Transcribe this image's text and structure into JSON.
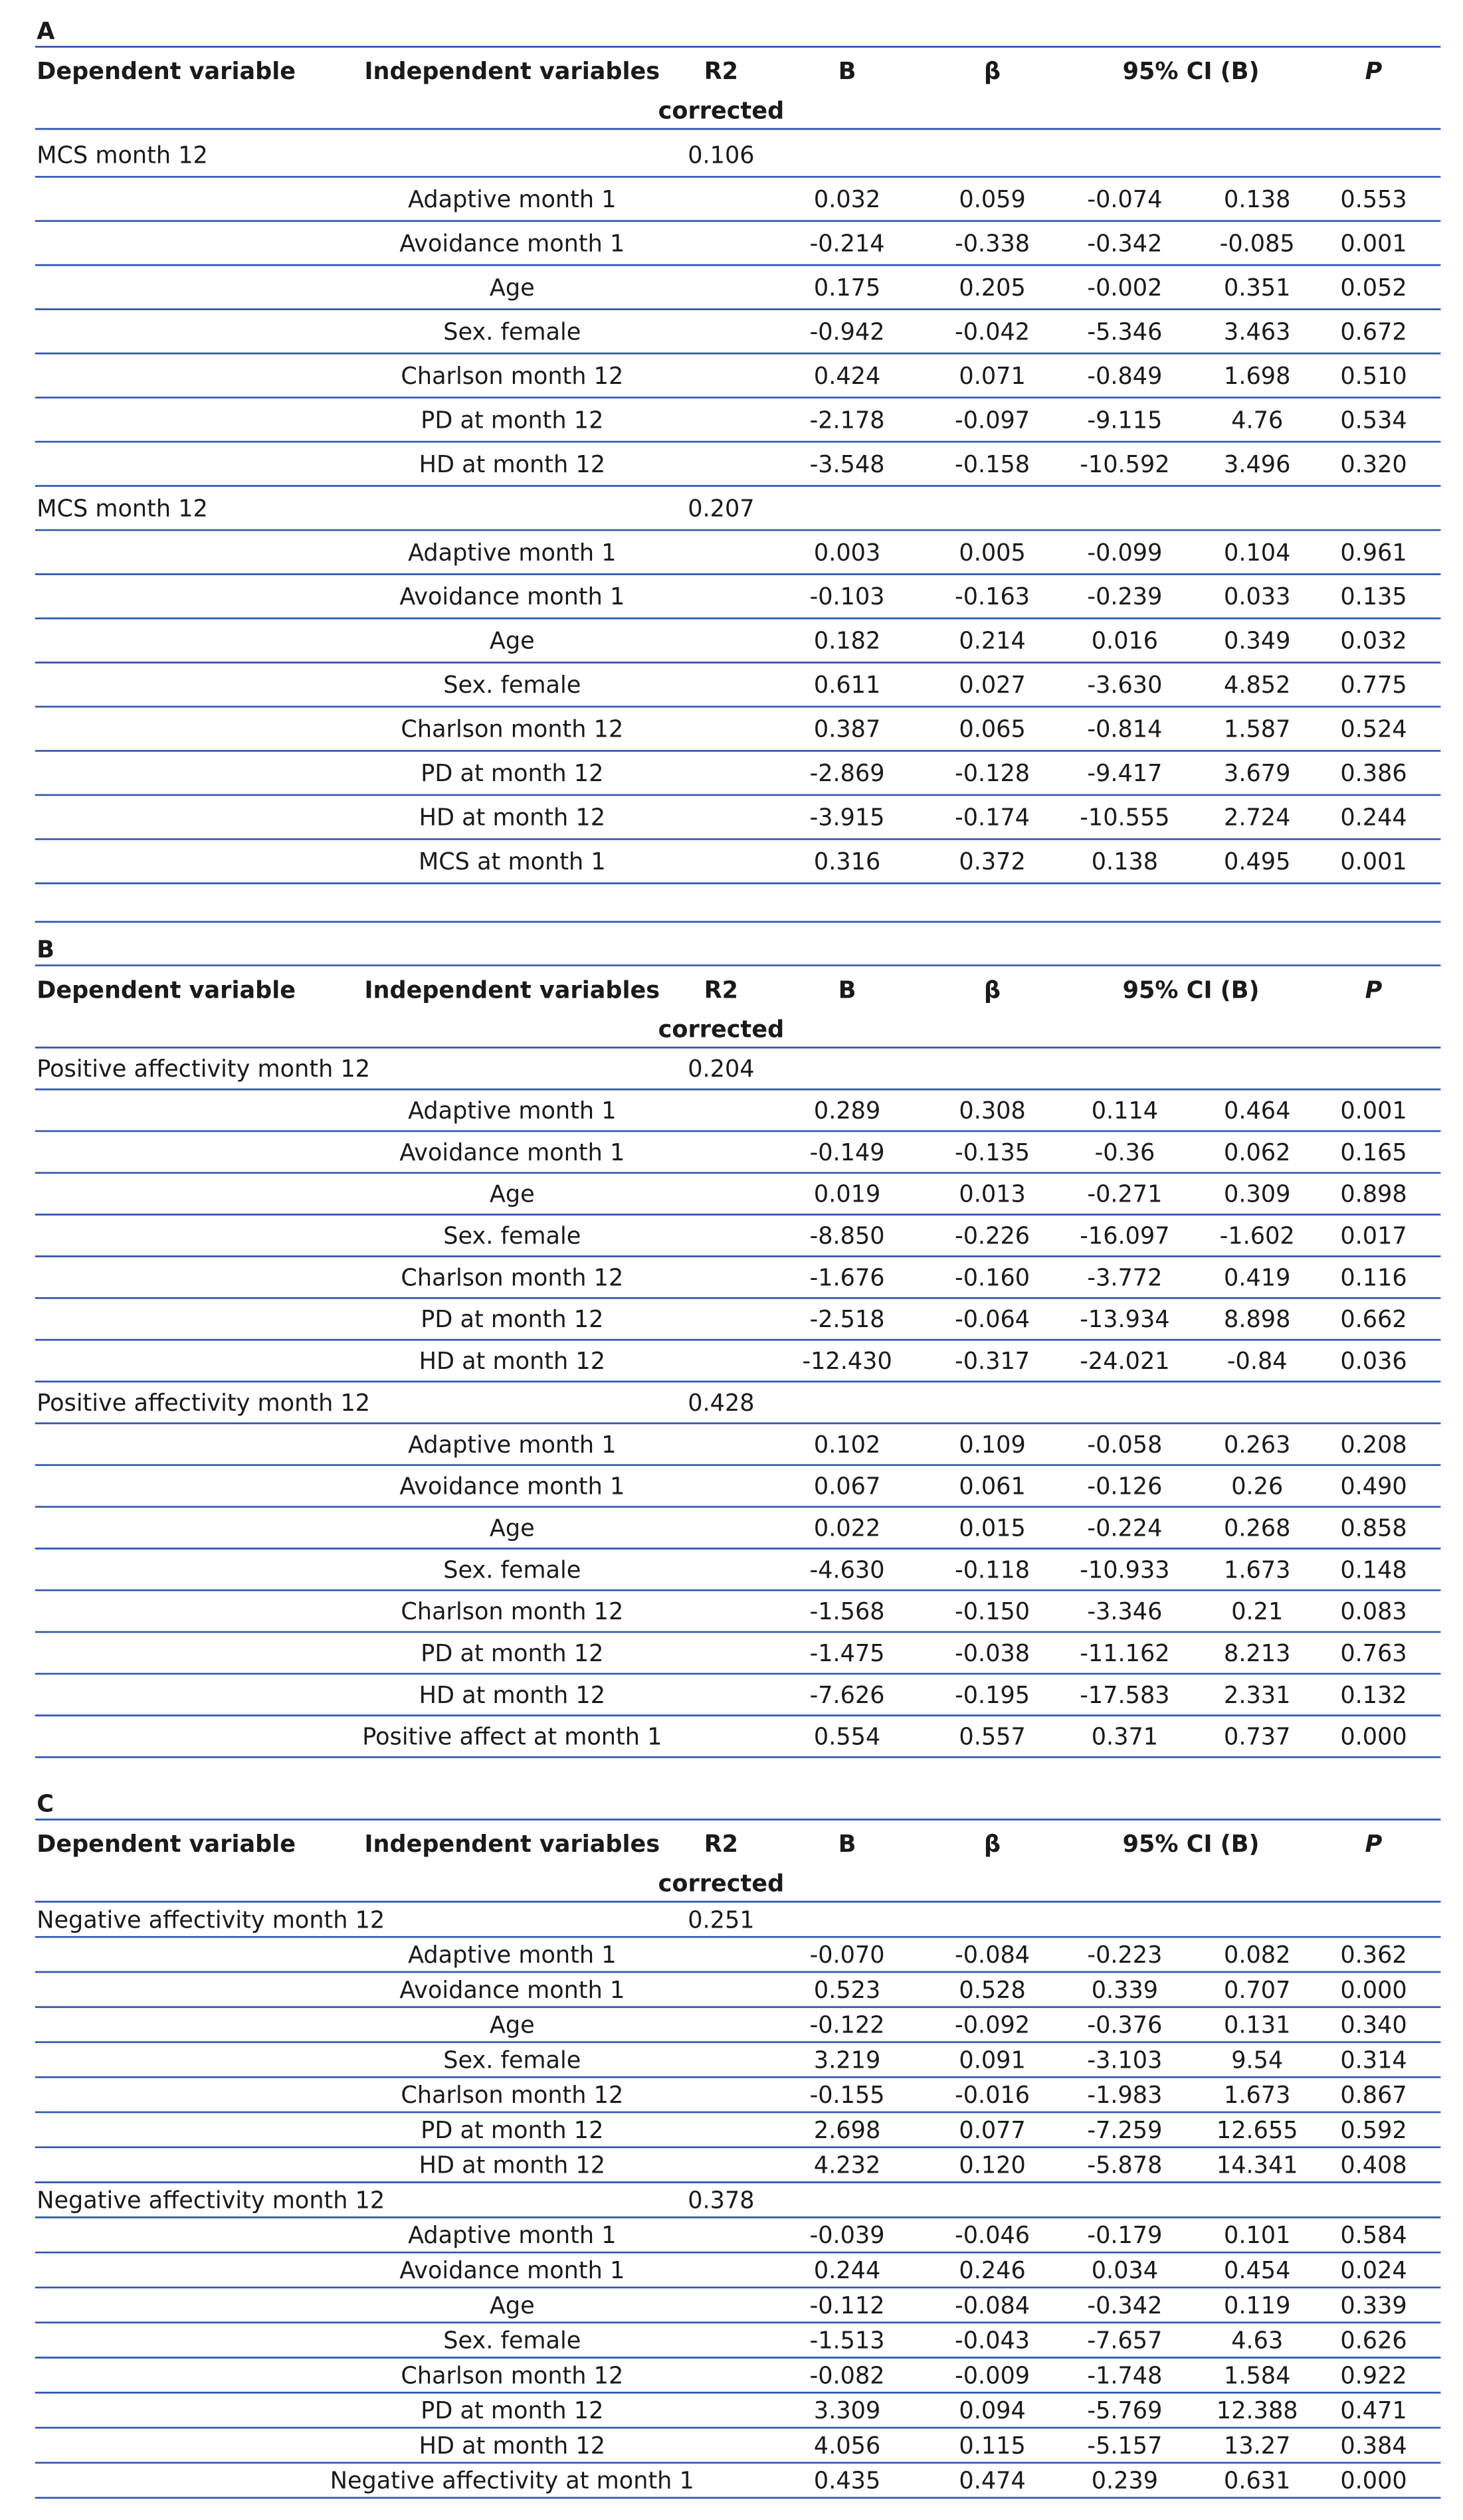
{
  "panels": [
    {
      "label": "A",
      "header": {
        "dependent": "Dependent variable",
        "independent": "Independent variables",
        "r2": "R2",
        "r2_second_line": "corrected",
        "b": "B",
        "beta": "β",
        "ci": "95% CI (B)",
        "p": "P"
      },
      "groups": [
        {
          "dependent": "MCS month 12",
          "r2": "0.106",
          "rows": [
            {
              "variable": "Adaptive month 1",
              "values": [
                "0.032",
                "0.059",
                "-0.074",
                "0.138",
                "0.553"
              ]
            },
            {
              "variable": "Avoidance month 1",
              "values": [
                "-0.214",
                "-0.338",
                "-0.342",
                "-0.085",
                "0.001"
              ]
            },
            {
              "variable": "Age",
              "values": [
                "0.175",
                "0.205",
                "-0.002",
                "0.351",
                "0.052"
              ]
            },
            {
              "variable": "Sex. female",
              "values": [
                "-0.942",
                "-0.042",
                "-5.346",
                "3.463",
                "0.672"
              ]
            },
            {
              "variable": "Charlson month 12",
              "values": [
                "0.424",
                "0.071",
                "-0.849",
                "1.698",
                "0.510"
              ]
            },
            {
              "variable": "PD at month 12",
              "values": [
                "-2.178",
                "-0.097",
                "-9.115",
                "4.76",
                "0.534"
              ]
            },
            {
              "variable": "HD at month 12",
              "values": [
                "-3.548",
                "-0.158",
                "-10.592",
                "3.496",
                "0.320"
              ]
            }
          ]
        },
        {
          "dependent": "MCS month 12",
          "r2": "0.207",
          "rows": [
            {
              "variable": "Adaptive month 1",
              "values": [
                "0.003",
                "0.005",
                "-0.099",
                "0.104",
                "0.961"
              ]
            },
            {
              "variable": "Avoidance month 1",
              "values": [
                "-0.103",
                "-0.163",
                "-0.239",
                "0.033",
                "0.135"
              ]
            },
            {
              "variable": "Age",
              "values": [
                "0.182",
                "0.214",
                "0.016",
                "0.349",
                "0.032"
              ]
            },
            {
              "variable": "Sex. female",
              "values": [
                "0.611",
                "0.027",
                "-3.630",
                "4.852",
                "0.775"
              ]
            },
            {
              "variable": "Charlson month 12",
              "values": [
                "0.387",
                "0.065",
                "-0.814",
                "1.587",
                "0.524"
              ]
            },
            {
              "variable": "PD at month 12",
              "values": [
                "-2.869",
                "-0.128",
                "-9.417",
                "3.679",
                "0.386"
              ]
            },
            {
              "variable": "HD at month 12",
              "values": [
                "-3.915",
                "-0.174",
                "-10.555",
                "2.724",
                "0.244"
              ]
            },
            {
              "variable": "MCS at month 1",
              "values": [
                "0.316",
                "0.372",
                "0.138",
                "0.495",
                "0.001"
              ]
            }
          ]
        }
      ]
    },
    {
      "label": "B",
      "header": {
        "dependent": "Dependent variable",
        "independent": "Independent variables",
        "r2": "R2",
        "r2_second_line": "corrected",
        "b": "B",
        "beta": "β",
        "ci": "95% CI (B)",
        "p": "P"
      },
      "groups": [
        {
          "dependent": "Positive affectivity month 12",
          "r2": "0.204",
          "rows": [
            {
              "variable": "Adaptive month 1",
              "values": [
                "0.289",
                "0.308",
                "0.114",
                "0.464",
                "0.001"
              ]
            },
            {
              "variable": "Avoidance month 1",
              "values": [
                "-0.149",
                "-0.135",
                "-0.36",
                "0.062",
                "0.165"
              ]
            },
            {
              "variable": "Age",
              "values": [
                "0.019",
                "0.013",
                "-0.271",
                "0.309",
                "0.898"
              ]
            },
            {
              "variable": "Sex. female",
              "values": [
                "-8.850",
                "-0.226",
                "-16.097",
                "-1.602",
                "0.017"
              ]
            },
            {
              "variable": "Charlson month 12",
              "values": [
                "-1.676",
                "-0.160",
                "-3.772",
                "0.419",
                "0.116"
              ]
            },
            {
              "variable": "PD at month 12",
              "values": [
                "-2.518",
                "-0.064",
                "-13.934",
                "8.898",
                "0.662"
              ]
            },
            {
              "variable": "HD at month 12",
              "values": [
                "-12.430",
                "-0.317",
                "-24.021",
                "-0.84",
                "0.036"
              ]
            }
          ]
        },
        {
          "dependent": "Positive affectivity month 12",
          "r2": "0.428",
          "rows": [
            {
              "variable": "Adaptive month 1",
              "values": [
                "0.102",
                "0.109",
                "-0.058",
                "0.263",
                "0.208"
              ]
            },
            {
              "variable": "Avoidance month 1",
              "values": [
                "0.067",
                "0.061",
                "-0.126",
                "0.26",
                "0.490"
              ]
            },
            {
              "variable": "Age",
              "values": [
                "0.022",
                "0.015",
                "-0.224",
                "0.268",
                "0.858"
              ]
            },
            {
              "variable": "Sex. female",
              "values": [
                "-4.630",
                "-0.118",
                "-10.933",
                "1.673",
                "0.148"
              ]
            },
            {
              "variable": "Charlson month 12",
              "values": [
                "-1.568",
                "-0.150",
                "-3.346",
                "0.21",
                "0.083"
              ]
            },
            {
              "variable": "PD at month 12",
              "values": [
                "-1.475",
                "-0.038",
                "-11.162",
                "8.213",
                "0.763"
              ]
            },
            {
              "variable": "HD at month 12",
              "values": [
                "-7.626",
                "-0.195",
                "-17.583",
                "2.331",
                "0.132"
              ]
            },
            {
              "variable": "Positive affect at month 1",
              "values": [
                "0.554",
                "0.557",
                "0.371",
                "0.737",
                "0.000"
              ]
            }
          ]
        }
      ]
    },
    {
      "label": "C",
      "header": {
        "dependent": "Dependent variable",
        "independent": "Independent variables",
        "r2": "R2",
        "r2_second_line": "corrected",
        "b": "B",
        "beta": "β",
        "ci": "95% CI (B)",
        "p": "P"
      },
      "groups": [
        {
          "dependent": "Negative affectivity month 12",
          "r2": "0.251",
          "rows": [
            {
              "variable": "Adaptive month 1",
              "values": [
                "-0.070",
                "-0.084",
                "-0.223",
                "0.082",
                "0.362"
              ]
            },
            {
              "variable": "Avoidance month 1",
              "values": [
                "0.523",
                "0.528",
                "0.339",
                "0.707",
                "0.000"
              ]
            },
            {
              "variable": "Age",
              "values": [
                "-0.122",
                "-0.092",
                "-0.376",
                "0.131",
                "0.340"
              ]
            },
            {
              "variable": "Sex. female",
              "values": [
                "3.219",
                "0.091",
                "-3.103",
                "9.54",
                "0.314"
              ]
            },
            {
              "variable": "Charlson month 12",
              "values": [
                "-0.155",
                "-0.016",
                "-1.983",
                "1.673",
                "0.867"
              ]
            },
            {
              "variable": "PD at month 12",
              "values": [
                "2.698",
                "0.077",
                "-7.259",
                "12.655",
                "0.592"
              ]
            },
            {
              "variable": "HD at month 12",
              "values": [
                "4.232",
                "0.120",
                "-5.878",
                "14.341",
                "0.408"
              ]
            }
          ]
        },
        {
          "dependent": "Negative affectivity month 12",
          "r2": "0.378",
          "rows": [
            {
              "variable": "Adaptive month 1",
              "values": [
                "-0.039",
                "-0.046",
                "-0.179",
                "0.101",
                "0.584"
              ]
            },
            {
              "variable": "Avoidance month 1",
              "values": [
                "0.244",
                "0.246",
                "0.034",
                "0.454",
                "0.024"
              ]
            },
            {
              "variable": "Age",
              "values": [
                "-0.112",
                "-0.084",
                "-0.342",
                "0.119",
                "0.339"
              ]
            },
            {
              "variable": "Sex. female",
              "values": [
                "-1.513",
                "-0.043",
                "-7.657",
                "4.63",
                "0.626"
              ]
            },
            {
              "variable": "Charlson month 12",
              "values": [
                "-0.082",
                "-0.009",
                "-1.748",
                "1.584",
                "0.922"
              ]
            },
            {
              "variable": "PD at month 12",
              "values": [
                "3.309",
                "0.094",
                "-5.769",
                "12.388",
                "0.471"
              ]
            },
            {
              "variable": "HD at month 12",
              "values": [
                "4.056",
                "0.115",
                "-5.157",
                "13.27",
                "0.384"
              ]
            },
            {
              "variable": "Negative affectivity at month 1",
              "values": [
                "0.435",
                "0.474",
                "0.239",
                "0.631",
                "0.000"
              ]
            }
          ]
        }
      ]
    }
  ]
}
